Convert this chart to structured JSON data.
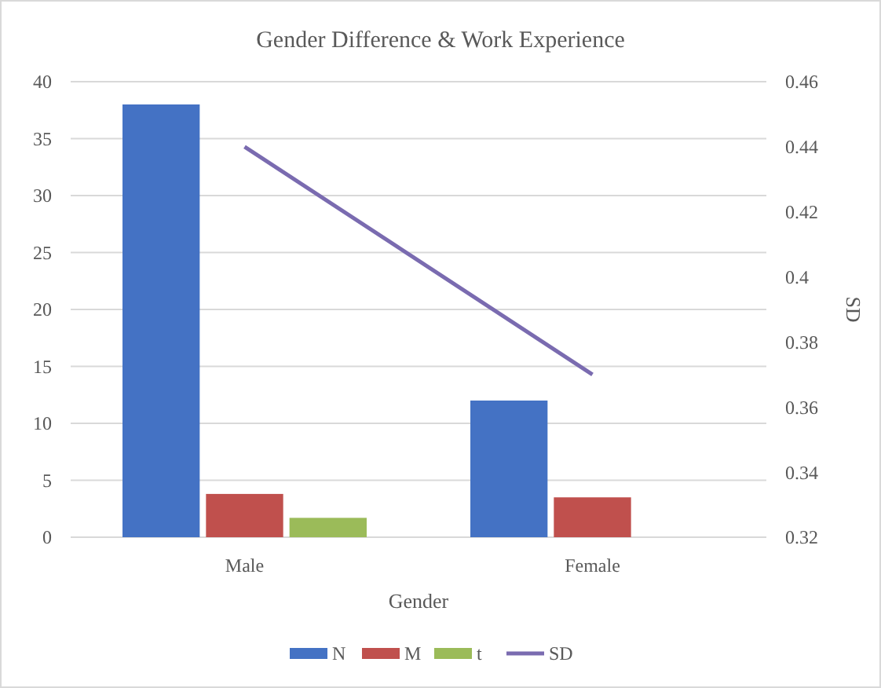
{
  "chart_data": {
    "type": "bar",
    "title": "Gender Difference & Work Experience",
    "xlabel": "Gender",
    "y2label": "SD",
    "categories": [
      "Male",
      "Female"
    ],
    "series": [
      {
        "name": "N",
        "color": "#4472c4",
        "values": [
          38,
          12
        ]
      },
      {
        "name": "M",
        "color": "#c0504d",
        "values": [
          3.8,
          3.5
        ]
      },
      {
        "name": "t",
        "color": "#9bbb59",
        "values": [
          1.7,
          null
        ]
      },
      {
        "name": "SD",
        "type": "line",
        "axis": "y2",
        "color": "#7a6bb0",
        "values": [
          0.44,
          0.37
        ]
      }
    ],
    "ylim": [
      0,
      40
    ],
    "yticks": [
      0,
      5,
      10,
      15,
      20,
      25,
      30,
      35,
      40
    ],
    "y2lim": [
      0.32,
      0.46
    ],
    "y2ticks": [
      0.32,
      0.34,
      0.36,
      0.38,
      {
        "value": 0.4,
        "label": "0.4"
      },
      0.42,
      0.44,
      0.46
    ],
    "grid": "y",
    "legend": "bottom",
    "marker": "none"
  }
}
